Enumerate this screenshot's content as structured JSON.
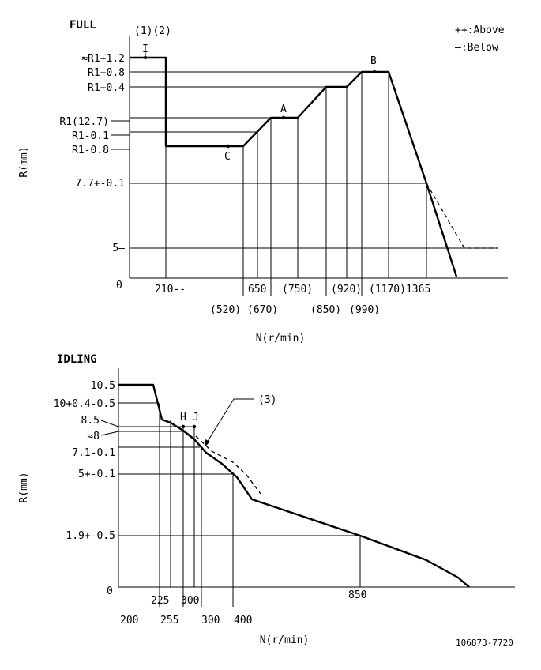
{
  "full": {
    "title": "FULL",
    "notes": "(1)(2)",
    "legend": {
      "above": "++:Above",
      "below": "—:Below"
    },
    "y_axis_label": "R(mm)",
    "x_axis_label": "N(r/min)",
    "origin": "0",
    "y_ticks": [
      "≈R1+1.2",
      "R1+0.8",
      "R1+0.4",
      "R1(12.7)",
      "R1-0.1",
      "R1-0.8",
      "7.7+-0.1",
      "5—"
    ],
    "x_ticks_row1": [
      "210--",
      "650",
      "(750)",
      "(920)",
      "(1170)1365"
    ],
    "x_ticks_row2": [
      "(520)",
      "(670)",
      "(850)",
      "(990)"
    ],
    "points": {
      "I": "I",
      "A": "A",
      "B": "B",
      "C": "C"
    }
  },
  "idling": {
    "title": "IDLING",
    "note3": "(3)",
    "y_axis_label": "R(mm)",
    "x_axis_label": "N(r/min)",
    "origin": "0",
    "y_ticks": [
      "10.5",
      "10+0.4-0.5",
      "8.5",
      "≈8",
      "7.1-0.1",
      "5+-0.1",
      "1.9+-0.5"
    ],
    "x_ticks_row1": [
      "225",
      "300",
      "850"
    ],
    "x_ticks_row2": [
      "200",
      "255",
      "300",
      "400"
    ],
    "points": {
      "H": "H",
      "J": "J"
    }
  },
  "drawing_number": "106873-7720"
}
